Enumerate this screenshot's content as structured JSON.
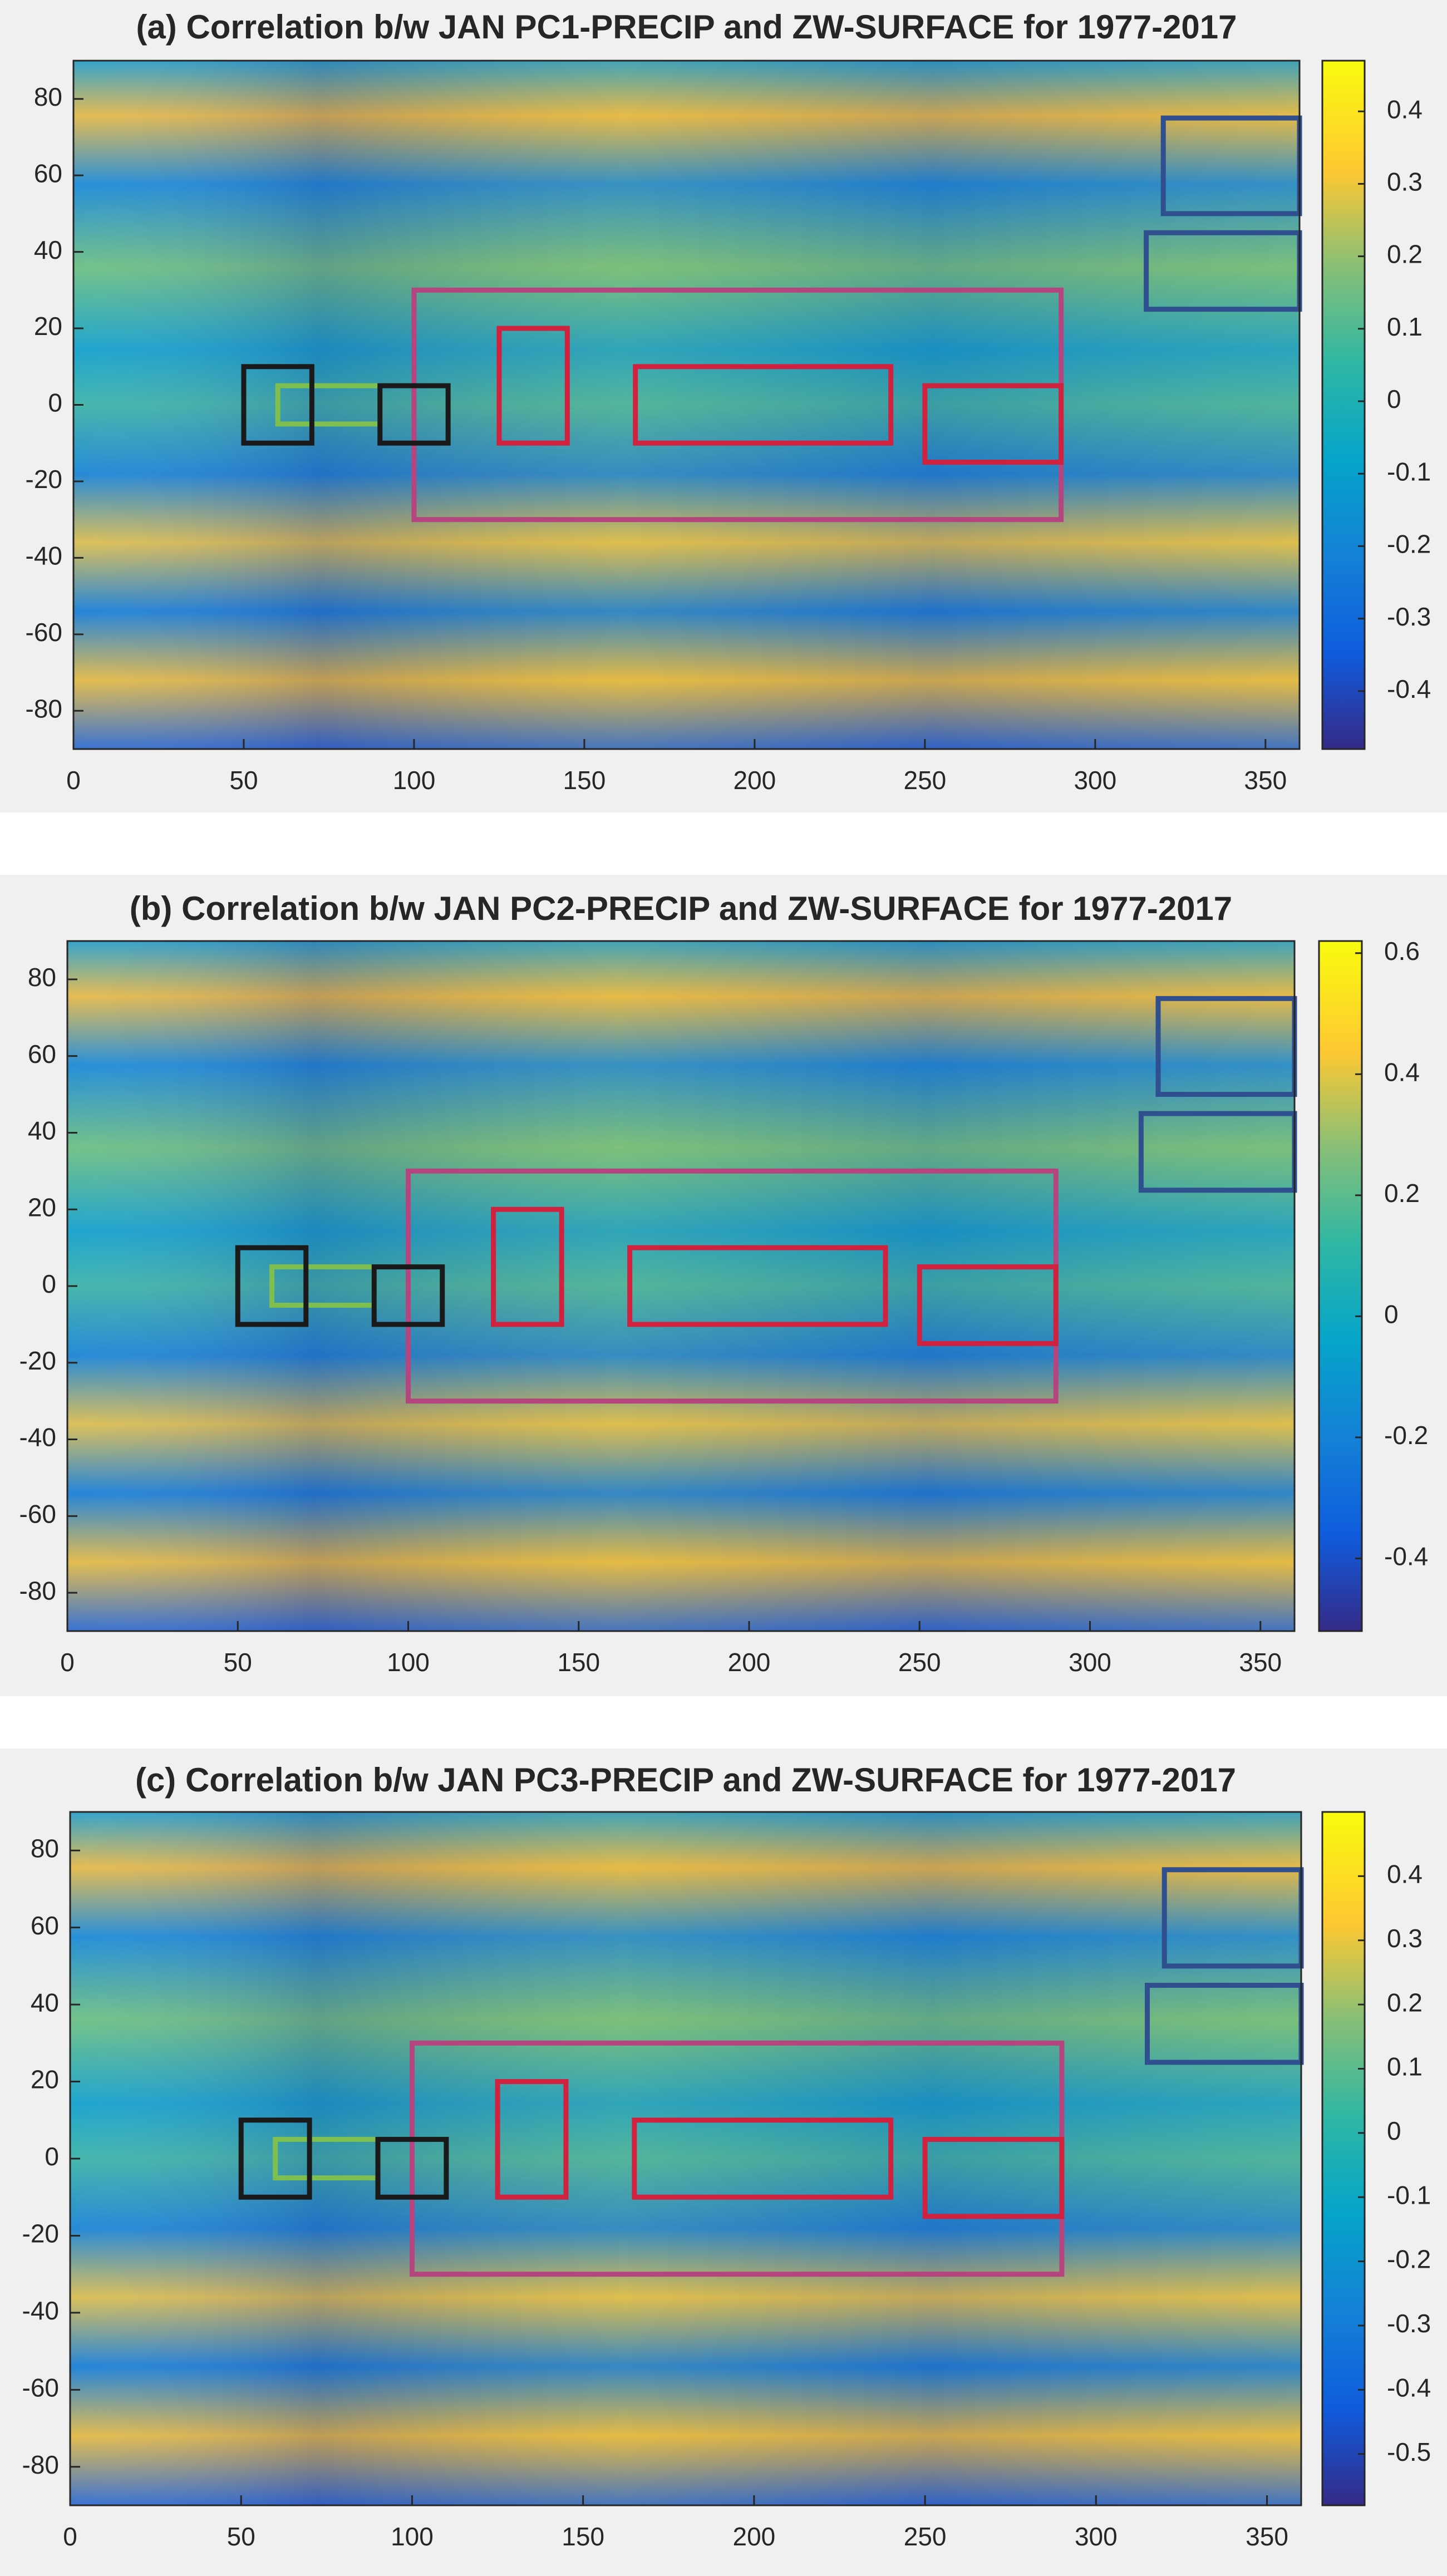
{
  "chart_data": [
    {
      "type": "heatmap",
      "title": "(a) Correlation b/w JAN PC1-PRECIP and ZW-SURFACE for 1977-2017",
      "xlim": [
        0,
        360
      ],
      "ylim": [
        -90,
        90
      ],
      "xticks": [
        0,
        50,
        100,
        150,
        200,
        250,
        300,
        350
      ],
      "yticks": [
        -80,
        -60,
        -40,
        -20,
        0,
        20,
        40,
        60,
        80
      ],
      "clim": [
        -0.48,
        0.47
      ],
      "cticks": [
        -0.4,
        -0.3,
        -0.2,
        -0.1,
        0,
        0.1,
        0.2,
        0.3,
        0.4
      ],
      "regions": [
        {
          "color": "#b5457e",
          "lon": [
            100,
            290
          ],
          "lat": [
            -30,
            30
          ]
        },
        {
          "color": "#d0213f",
          "lon": [
            125,
            145
          ],
          "lat": [
            -10,
            20
          ]
        },
        {
          "color": "#d0213f",
          "lon": [
            165,
            240
          ],
          "lat": [
            -10,
            10
          ]
        },
        {
          "color": "#d0213f",
          "lon": [
            250,
            290
          ],
          "lat": [
            -15,
            5
          ]
        },
        {
          "color": "#7fbf4f",
          "lon": [
            60,
            90
          ],
          "lat": [
            -5,
            5
          ]
        },
        {
          "color": "#1a1a1a",
          "lon": [
            50,
            70
          ],
          "lat": [
            -10,
            10
          ]
        },
        {
          "color": "#1a1a1a",
          "lon": [
            90,
            110
          ],
          "lat": [
            -10,
            5
          ]
        },
        {
          "color": "#2f4f8f",
          "lon": [
            320,
            360
          ],
          "lat": [
            50,
            75
          ]
        },
        {
          "color": "#2f4f8f",
          "lon": [
            315,
            360
          ],
          "lat": [
            25,
            45
          ]
        }
      ]
    },
    {
      "type": "heatmap",
      "title": "(b) Correlation b/w JAN PC2-PRECIP and ZW-SURFACE for 1977-2017",
      "xlim": [
        0,
        360
      ],
      "ylim": [
        -90,
        90
      ],
      "xticks": [
        0,
        50,
        100,
        150,
        200,
        250,
        300,
        350
      ],
      "yticks": [
        -80,
        -60,
        -40,
        -20,
        0,
        20,
        40,
        60,
        80
      ],
      "clim": [
        -0.52,
        0.62
      ],
      "cticks": [
        -0.4,
        -0.2,
        0,
        0.2,
        0.4,
        0.6
      ],
      "regions": [
        {
          "color": "#b5457e",
          "lon": [
            100,
            290
          ],
          "lat": [
            -30,
            30
          ]
        },
        {
          "color": "#d0213f",
          "lon": [
            125,
            145
          ],
          "lat": [
            -10,
            20
          ]
        },
        {
          "color": "#d0213f",
          "lon": [
            165,
            240
          ],
          "lat": [
            -10,
            10
          ]
        },
        {
          "color": "#d0213f",
          "lon": [
            250,
            290
          ],
          "lat": [
            -15,
            5
          ]
        },
        {
          "color": "#7fbf4f",
          "lon": [
            60,
            90
          ],
          "lat": [
            -5,
            5
          ]
        },
        {
          "color": "#1a1a1a",
          "lon": [
            50,
            70
          ],
          "lat": [
            -10,
            10
          ]
        },
        {
          "color": "#1a1a1a",
          "lon": [
            90,
            110
          ],
          "lat": [
            -10,
            5
          ]
        },
        {
          "color": "#2f4f8f",
          "lon": [
            320,
            360
          ],
          "lat": [
            50,
            75
          ]
        },
        {
          "color": "#2f4f8f",
          "lon": [
            315,
            360
          ],
          "lat": [
            25,
            45
          ]
        }
      ]
    },
    {
      "type": "heatmap",
      "title": "(c) Correlation b/w JAN PC3-PRECIP and ZW-SURFACE for 1977-2017",
      "xlim": [
        0,
        360
      ],
      "ylim": [
        -90,
        90
      ],
      "xticks": [
        0,
        50,
        100,
        150,
        200,
        250,
        300,
        350
      ],
      "yticks": [
        -80,
        -60,
        -40,
        -20,
        0,
        20,
        40,
        60,
        80
      ],
      "clim": [
        -0.58,
        0.5
      ],
      "cticks": [
        -0.5,
        -0.4,
        -0.3,
        -0.2,
        -0.1,
        0,
        0.1,
        0.2,
        0.3,
        0.4
      ],
      "regions": [
        {
          "color": "#b5457e",
          "lon": [
            100,
            290
          ],
          "lat": [
            -30,
            30
          ]
        },
        {
          "color": "#d0213f",
          "lon": [
            125,
            145
          ],
          "lat": [
            -10,
            20
          ]
        },
        {
          "color": "#d0213f",
          "lon": [
            165,
            240
          ],
          "lat": [
            -10,
            10
          ]
        },
        {
          "color": "#d0213f",
          "lon": [
            250,
            290
          ],
          "lat": [
            -15,
            5
          ]
        },
        {
          "color": "#7fbf4f",
          "lon": [
            60,
            90
          ],
          "lat": [
            -5,
            5
          ]
        },
        {
          "color": "#1a1a1a",
          "lon": [
            50,
            70
          ],
          "lat": [
            -10,
            10
          ]
        },
        {
          "color": "#1a1a1a",
          "lon": [
            90,
            110
          ],
          "lat": [
            -10,
            5
          ]
        },
        {
          "color": "#2f4f8f",
          "lon": [
            320,
            360
          ],
          "lat": [
            50,
            75
          ]
        },
        {
          "color": "#2f4f8f",
          "lon": [
            315,
            360
          ],
          "lat": [
            25,
            45
          ]
        }
      ]
    }
  ]
}
